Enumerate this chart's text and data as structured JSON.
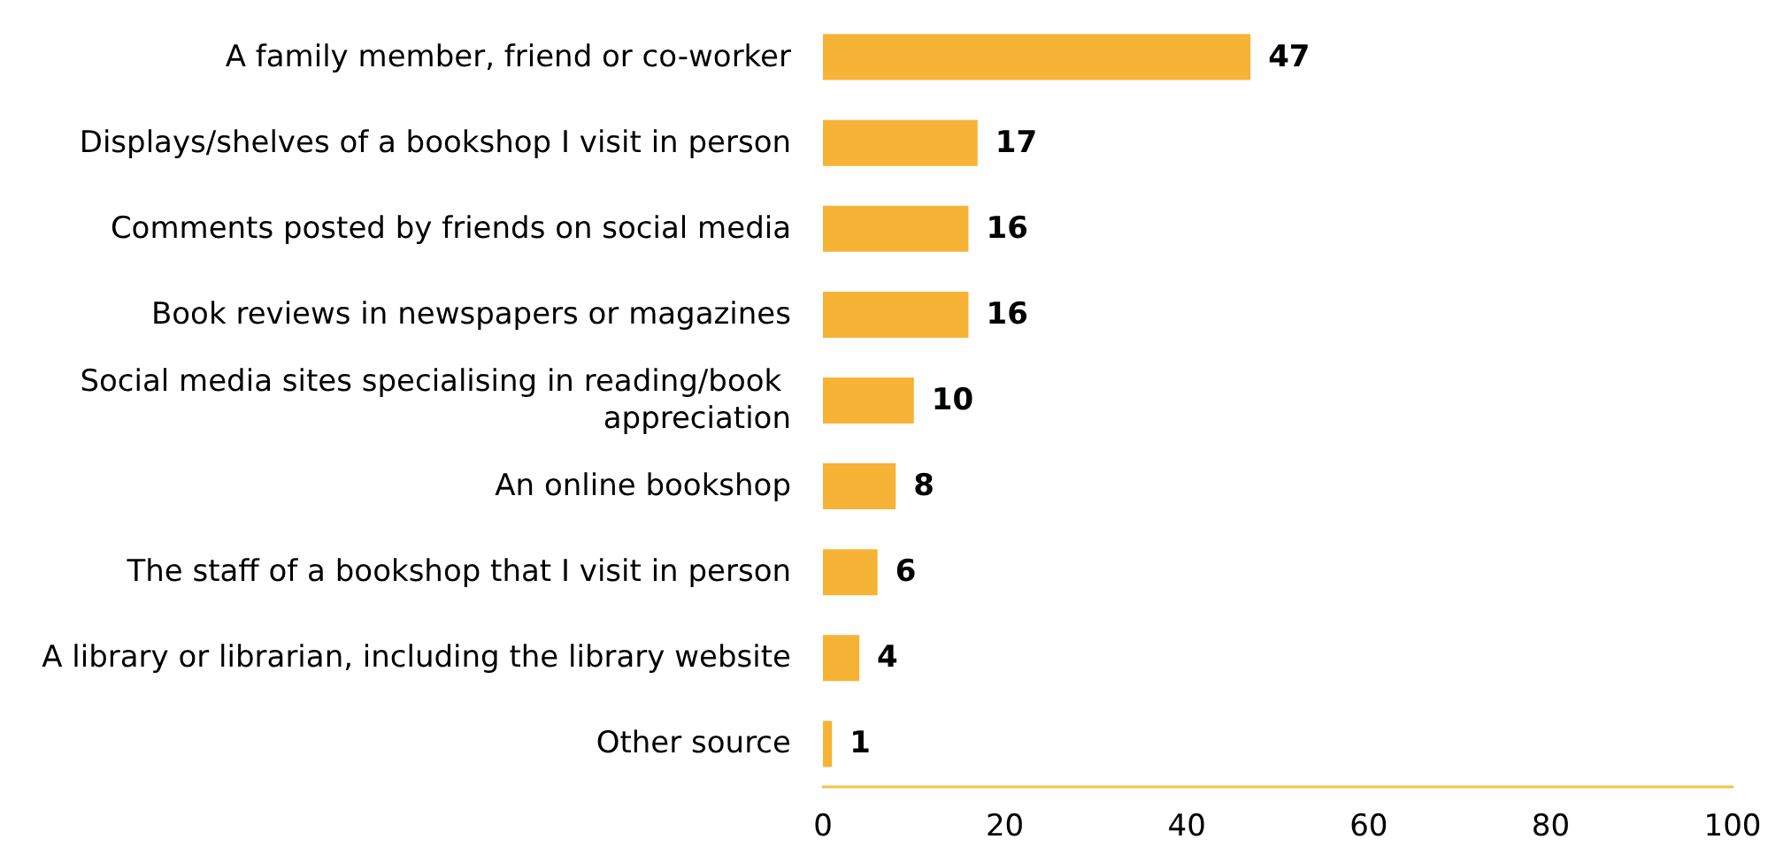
{
  "chart_data": {
    "type": "bar",
    "orientation": "horizontal",
    "categories": [
      "A family member, friend or co-worker",
      "Displays/shelves of a bookshop I visit in person",
      "Comments posted by friends on social media",
      "Book reviews in newspapers or magazines",
      "Social media sites specialising in reading/book appreciation",
      "An online bookshop",
      "The staff of a bookshop that I visit in person",
      "A library or librarian, including the library website",
      "Other source"
    ],
    "values": [
      47,
      17,
      16,
      16,
      10,
      8,
      6,
      4,
      1
    ],
    "color": "#f6b335",
    "xlim": [
      0,
      100
    ],
    "xticks": [
      0,
      20,
      40,
      60,
      80,
      100
    ],
    "grid": false,
    "data_labels": true
  }
}
